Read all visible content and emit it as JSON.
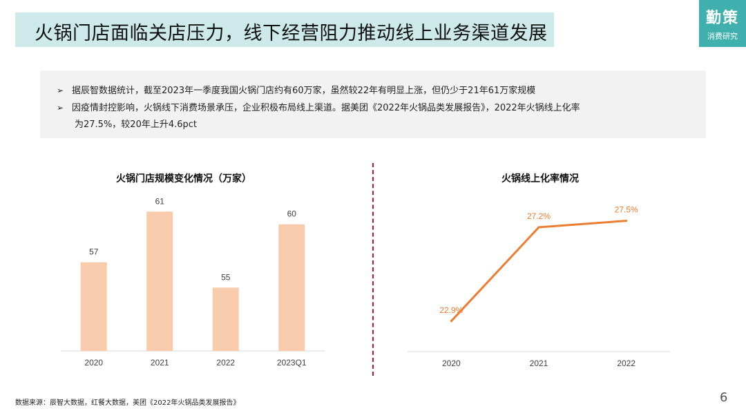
{
  "header": {
    "title": "火锅门店面临关店压力，线下经营阻力推动线上业务渠道发展",
    "logo_main": "勤策",
    "logo_sub": "消费研究"
  },
  "bullets": {
    "item1": "据辰智数据统计，截至2023年一季度我国火锅门店约有60万家，虽然较22年有明显上涨，但仍少于21年61万家规模",
    "item2_line1": "因疫情封控影响，火锅线下消费场景承压，企业积极布局线上渠道。据美团《2022年火锅品类发展报告》，2022年火锅线上化率",
    "item2_line2": "为27.5%，较20年上升4.6pct"
  },
  "chart_data": [
    {
      "type": "bar",
      "title": "火锅门店规模变化情况（万家）",
      "categories": [
        "2020",
        "2021",
        "2022",
        "2023Q1"
      ],
      "values": [
        57,
        61,
        55,
        60
      ],
      "labels": [
        "57",
        "61",
        "55",
        "60"
      ],
      "ylim": [
        50,
        62
      ],
      "color": "#f8cbad"
    },
    {
      "type": "line",
      "title": "火锅线上化率情况",
      "categories": [
        "2020",
        "2021",
        "2022"
      ],
      "values": [
        22.9,
        27.2,
        27.5
      ],
      "labels": [
        "22.9%",
        "27.2%",
        "27.5%"
      ],
      "ylim": [
        21.5,
        28.5
      ],
      "color": "#ed7d31"
    }
  ],
  "footer": {
    "source": "数据来源：辰智大数据，红餐大数据，美团《2022年火锅品类发展报告》",
    "page_number": "6"
  }
}
